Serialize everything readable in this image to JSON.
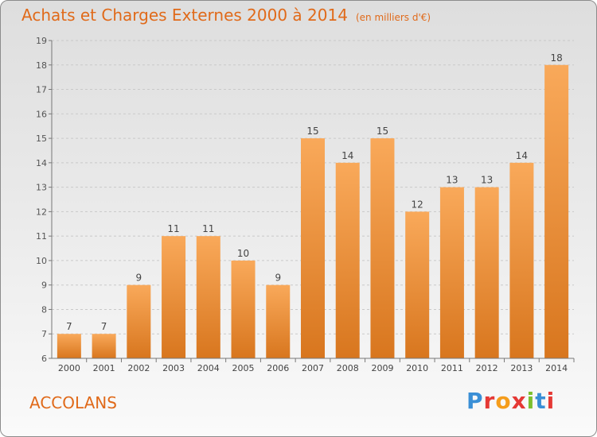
{
  "header": {
    "title": "Achats et Charges Externes 2000 à 2014",
    "subtitle": "(en milliers d'€)"
  },
  "footer": {
    "commune": "ACCOLANS",
    "logo_text": "Proxiti",
    "logo_colors": [
      "#3a8fd6",
      "#e53935",
      "#f59d1c",
      "#e53935",
      "#7cbf2e",
      "#3a8fd6",
      "#e53935"
    ]
  },
  "colors": {
    "bar_light": "#f9a95a",
    "bar_dark": "#d8761e",
    "title": "#e06a1a",
    "axis": "#777777"
  },
  "chart_data": {
    "type": "bar",
    "title": "Achats et Charges Externes 2000 à 2014",
    "subtitle": "(en milliers d'€)",
    "xlabel": "",
    "ylabel": "",
    "categories": [
      "2000",
      "2001",
      "2002",
      "2003",
      "2004",
      "2005",
      "2006",
      "2007",
      "2008",
      "2009",
      "2010",
      "2011",
      "2012",
      "2013",
      "2014"
    ],
    "values": [
      7,
      7,
      9,
      11,
      11,
      10,
      9,
      15,
      14,
      15,
      12,
      13,
      13,
      14,
      18
    ],
    "ylim": [
      6,
      19
    ],
    "yticks": [
      6,
      7,
      8,
      9,
      10,
      11,
      12,
      13,
      14,
      15,
      16,
      17,
      18,
      19
    ],
    "grid": true,
    "data_labels": true
  }
}
